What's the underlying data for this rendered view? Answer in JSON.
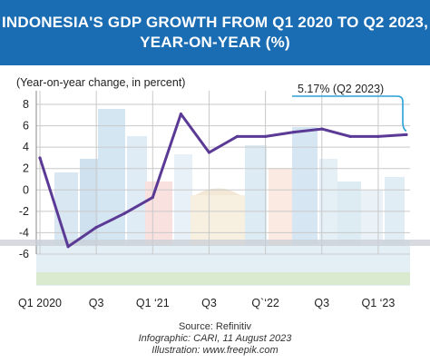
{
  "title": {
    "line1": "INDONESIA'S GDP GROWTH FROM Q1 2020 TO Q2 2023,",
    "line2": "YEAR-ON-YEAR (%)"
  },
  "colors": {
    "title_bar": "#1b6db3",
    "line": "#5b3a96",
    "grid": "#c9c9c9",
    "text": "#222222"
  },
  "footer": {
    "source": "Source: Refinitiv",
    "infographic": "Infographic: CARI, 11 August 2023",
    "illustration": "Illustration: www.freepik.com"
  },
  "chart_data": {
    "type": "line",
    "ylabel": "(Year-on-year change, in percent)",
    "ylim": [
      -6,
      8
    ],
    "yticks": [
      8,
      6,
      4,
      2,
      0,
      -2,
      -4,
      -6
    ],
    "x": [
      "Q1 2020",
      "Q2 2020",
      "Q3 2020",
      "Q4 2020",
      "Q1 2021",
      "Q2 2021",
      "Q3 2021",
      "Q4 2021",
      "Q1 2022",
      "Q2 2022",
      "Q3 2022",
      "Q4 2022",
      "Q1 2023",
      "Q2 2023"
    ],
    "xtick_labels": [
      "Q1 2020",
      "",
      "Q3",
      "",
      "Q1 ‘21",
      "",
      "Q3",
      "",
      "Q`‘22",
      "",
      "Q3",
      "",
      "Q1 ‘23",
      ""
    ],
    "series": [
      {
        "values": [
          3.0,
          -5.3,
          -3.5,
          -2.2,
          -0.7,
          7.1,
          3.5,
          5.0,
          5.0,
          5.4,
          5.7,
          5.0,
          5.0,
          5.17
        ]
      }
    ],
    "annotation": {
      "text": "5.17% (Q2 2023)",
      "target_index": 13
    },
    "grid": true
  }
}
